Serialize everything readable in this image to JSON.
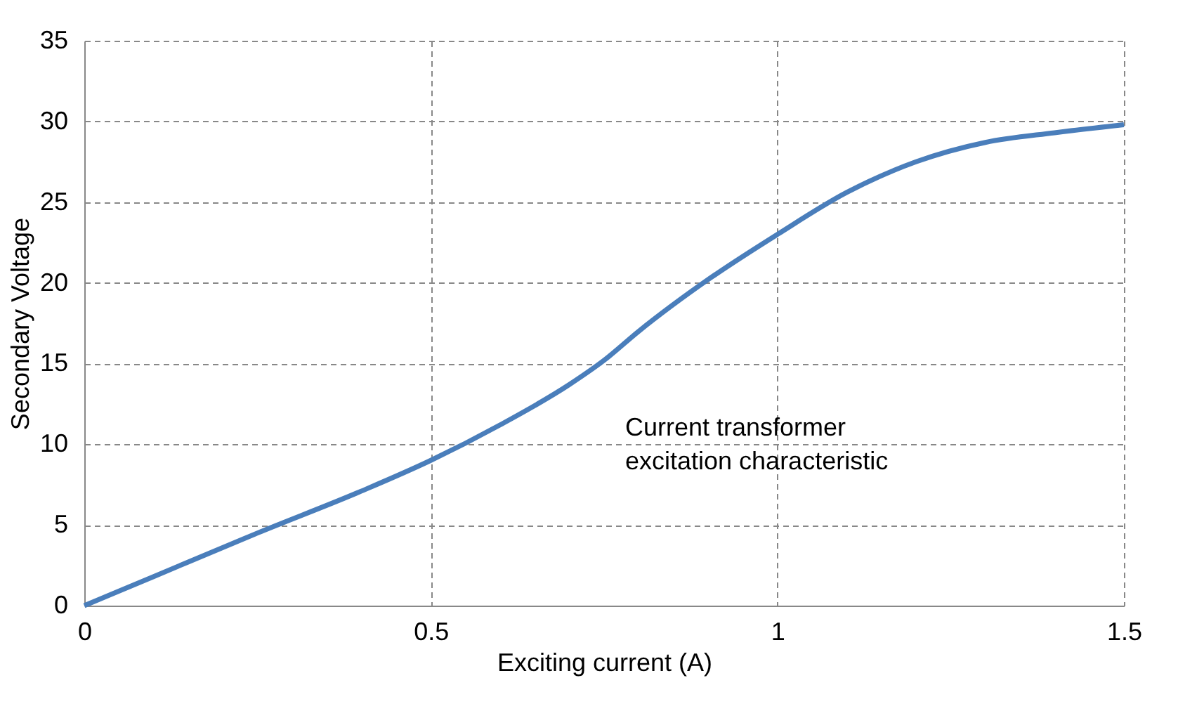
{
  "chart_data": {
    "type": "line",
    "xlabel": "Exciting current (A)",
    "ylabel": "Secondary Voltage",
    "x": [
      0,
      0.1,
      0.25,
      0.4,
      0.5,
      0.6,
      0.7,
      0.75,
      0.8,
      0.9,
      1.0,
      1.1,
      1.2,
      1.3,
      1.4,
      1.5
    ],
    "series": [
      {
        "color": "#4a7ebb",
        "values": [
          0,
          1.8,
          4.5,
          7.1,
          9,
          11.2,
          13.7,
          15.2,
          17,
          20.2,
          23,
          25.6,
          27.5,
          28.7,
          29.3,
          29.8
        ]
      }
    ],
    "xlim": [
      0,
      1.5
    ],
    "xticks": [
      0,
      0.5,
      1,
      1.5
    ],
    "ylim": [
      0,
      35
    ],
    "yticks": [
      0,
      5,
      10,
      15,
      20,
      25,
      30,
      35
    ],
    "grid": true,
    "line_style": "solid",
    "marker": "none",
    "legend": false,
    "annotations": [
      "Current transformer\nexcitation characteristic"
    ]
  }
}
